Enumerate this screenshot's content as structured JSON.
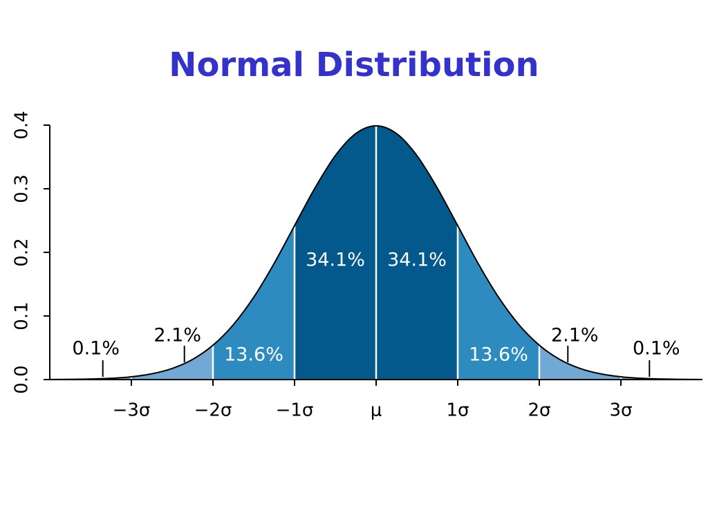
{
  "chart_data": {
    "type": "normal",
    "title": "Normal Distribution",
    "x": [
      -4,
      -3.75,
      -3.5,
      -3.25,
      -3,
      -2.75,
      -2.5,
      -2.25,
      -2,
      -1.75,
      -1.5,
      -1.25,
      -1,
      -0.75,
      -0.5,
      -0.25,
      0,
      0.25,
      0.5,
      0.75,
      1,
      1.25,
      1.5,
      1.75,
      2,
      2.25,
      2.5,
      2.75,
      3,
      3.25,
      3.5,
      3.75,
      4
    ],
    "values": [
      0.0001,
      0.0004,
      0.0009,
      0.002,
      0.0044,
      0.0091,
      0.0175,
      0.0317,
      0.054,
      0.0863,
      0.1295,
      0.1826,
      0.242,
      0.3011,
      0.3521,
      0.3867,
      0.3989,
      0.3867,
      0.3521,
      0.3011,
      0.242,
      0.1826,
      0.1295,
      0.0863,
      0.054,
      0.0317,
      0.0175,
      0.0091,
      0.0044,
      0.002,
      0.0009,
      0.0004,
      0.0001
    ],
    "bands": {
      "edges": [
        -4,
        -3,
        -2,
        -1,
        0,
        1,
        2,
        3,
        4
      ],
      "values": [
        0.1,
        2.1,
        13.6,
        34.1,
        34.1,
        13.6,
        2.1,
        0.1
      ],
      "value_labels": [
        "0.1%",
        "2.1%",
        "13.6%",
        "34.1%",
        "34.1%",
        "13.6%",
        "2.1%",
        "0.1%"
      ],
      "colors": [
        "#72a8d4",
        "#72a8d4",
        "#2e8bc0",
        "#03598b",
        "#03598b",
        "#2e8bc0",
        "#72a8d4",
        "#72a8d4"
      ]
    },
    "xlim": [
      -4,
      4
    ],
    "ylim": [
      0,
      0.4
    ],
    "xticks": [
      {
        "value": -3,
        "label": "−3σ"
      },
      {
        "value": -2,
        "label": "−2σ"
      },
      {
        "value": -1,
        "label": "−1σ"
      },
      {
        "value": 0,
        "label": "μ"
      },
      {
        "value": 1,
        "label": "1σ"
      },
      {
        "value": 2,
        "label": "2σ"
      },
      {
        "value": 3,
        "label": "3σ"
      }
    ],
    "yticks": [
      {
        "value": 0,
        "label": "0.0"
      },
      0.1,
      0.2,
      0.3,
      0.4
    ]
  }
}
